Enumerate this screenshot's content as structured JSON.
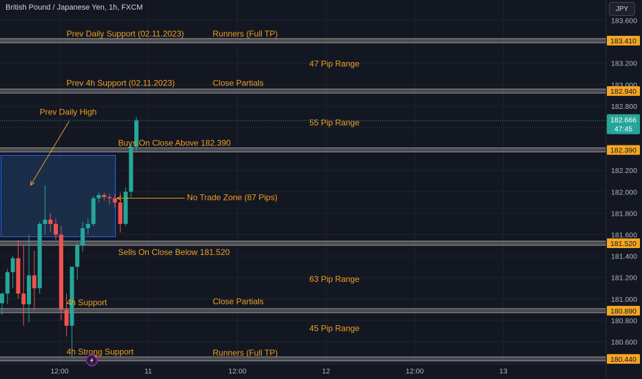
{
  "header": {
    "title": "British Pound / Japanese Yen, 1h, FXCM",
    "currency_button": "JPY"
  },
  "colors": {
    "background": "#131722",
    "up": "#26a69a",
    "down": "#ef5350",
    "annotation": "#f0a020",
    "zone_fill": "#1c3556",
    "zone_border": "#2962ff",
    "level_band": "#777777",
    "price_tag": "#f5a623",
    "current_price_tag": "#26a69a",
    "axis_text": "#b2b5be",
    "grid": "#1f232e"
  },
  "chart_data": {
    "type": "candlestick",
    "title": "British Pound / Japanese Yen, 1h, FXCM",
    "ylim": [
      180.38,
      183.7
    ],
    "y_ticks": [
      "183.600",
      "183.400",
      "183.200",
      "183.000",
      "182.800",
      "182.600",
      "182.400",
      "182.200",
      "182.000",
      "181.800",
      "181.600",
      "181.400",
      "181.200",
      "181.000",
      "180.800",
      "180.600"
    ],
    "x_ticks": [
      {
        "label": "12:00",
        "bar": 10.7
      },
      {
        "label": "11",
        "bar": 27.2
      },
      {
        "label": "12:00",
        "bar": 43.8
      },
      {
        "label": "12",
        "bar": 60.3
      },
      {
        "label": "12:00",
        "bar": 76.8
      },
      {
        "label": "13",
        "bar": 93.3
      }
    ],
    "candles": [
      {
        "o": 180.96,
        "h": 181.06,
        "l": 180.85,
        "c": 181.05
      },
      {
        "o": 181.05,
        "h": 181.28,
        "l": 180.95,
        "c": 181.25
      },
      {
        "o": 181.25,
        "h": 181.4,
        "l": 181.1,
        "c": 181.38
      },
      {
        "o": 181.38,
        "h": 181.55,
        "l": 181.0,
        "c": 181.05
      },
      {
        "o": 181.05,
        "h": 181.5,
        "l": 180.75,
        "c": 180.95
      },
      {
        "o": 180.95,
        "h": 181.6,
        "l": 180.78,
        "c": 181.22
      },
      {
        "o": 181.22,
        "h": 181.45,
        "l": 180.9,
        "c": 181.1
      },
      {
        "o": 181.1,
        "h": 181.72,
        "l": 181.05,
        "c": 181.7
      },
      {
        "o": 181.7,
        "h": 182.06,
        "l": 181.6,
        "c": 181.74
      },
      {
        "o": 181.74,
        "h": 181.8,
        "l": 181.62,
        "c": 181.7
      },
      {
        "o": 181.7,
        "h": 181.75,
        "l": 181.55,
        "c": 181.6
      },
      {
        "o": 181.6,
        "h": 181.68,
        "l": 180.8,
        "c": 180.9
      },
      {
        "o": 180.9,
        "h": 181.05,
        "l": 180.65,
        "c": 180.75
      },
      {
        "o": 180.75,
        "h": 181.3,
        "l": 180.45,
        "c": 181.3
      },
      {
        "o": 181.3,
        "h": 181.52,
        "l": 181.18,
        "c": 181.5
      },
      {
        "o": 181.5,
        "h": 181.72,
        "l": 181.44,
        "c": 181.66
      },
      {
        "o": 181.66,
        "h": 181.75,
        "l": 181.6,
        "c": 181.7
      },
      {
        "o": 181.7,
        "h": 181.96,
        "l": 181.68,
        "c": 181.94
      },
      {
        "o": 181.94,
        "h": 181.99,
        "l": 181.9,
        "c": 181.97
      },
      {
        "o": 181.97,
        "h": 181.99,
        "l": 181.92,
        "c": 181.95
      },
      {
        "o": 181.95,
        "h": 181.98,
        "l": 181.88,
        "c": 181.94
      },
      {
        "o": 181.94,
        "h": 181.98,
        "l": 181.85,
        "c": 181.9
      },
      {
        "o": 181.9,
        "h": 181.99,
        "l": 181.62,
        "c": 181.7
      },
      {
        "o": 181.7,
        "h": 182.04,
        "l": 181.68,
        "c": 182.0
      },
      {
        "o": 182.0,
        "h": 182.44,
        "l": 181.95,
        "c": 182.42
      },
      {
        "o": 182.42,
        "h": 182.7,
        "l": 182.38,
        "c": 182.666
      }
    ],
    "levels": [
      {
        "price": 183.41,
        "label": "183.410"
      },
      {
        "price": 182.94,
        "label": "182.940"
      },
      {
        "price": 182.39,
        "label": "182.390"
      },
      {
        "price": 181.52,
        "label": "181.520"
      },
      {
        "price": 180.89,
        "label": "180.890"
      },
      {
        "price": 180.44,
        "label": "180.440"
      }
    ],
    "current_price": {
      "price": 182.666,
      "label": "182.666",
      "countdown": "47:45"
    },
    "zone": {
      "top": 182.34,
      "bottom": 181.58,
      "bar_start": -0.2,
      "bar_end": 21.1
    },
    "annotations": [
      {
        "text": "Prev Daily Support (02.11.2023)",
        "price": 183.45,
        "bar": 12.0
      },
      {
        "text": "Runners (Full TP)",
        "price": 183.45,
        "bar": 39.2
      },
      {
        "text": "47 Pip Range",
        "price": 183.17,
        "bar": 57.2
      },
      {
        "text": "Prev 4h Support (02.11.2023)",
        "price": 182.99,
        "bar": 12.0
      },
      {
        "text": "Close Partials",
        "price": 182.99,
        "bar": 39.2
      },
      {
        "text": "Prev Daily High",
        "price": 182.72,
        "bar": 7.0
      },
      {
        "text": "55 Pip Range",
        "price": 182.62,
        "bar": 57.2
      },
      {
        "text": "Buys On Close Above 182.390",
        "price": 182.43,
        "bar": 21.6
      },
      {
        "text": "No Trade Zone (87 Pips)",
        "price": 181.92,
        "bar": 34.4
      },
      {
        "text": "Sells On Close Below 181.520",
        "price": 181.41,
        "bar": 21.6
      },
      {
        "text": "63 Pip Range",
        "price": 181.16,
        "bar": 57.2
      },
      {
        "text": "4h Support",
        "price": 180.94,
        "bar": 12.0
      },
      {
        "text": "Close Partials",
        "price": 180.95,
        "bar": 39.2
      },
      {
        "text": "45 Pip Range",
        "price": 180.7,
        "bar": 57.2
      },
      {
        "text": "4h Strong Support",
        "price": 180.48,
        "bar": 12.0
      },
      {
        "text": "Runners (Full TP)",
        "price": 180.47,
        "bar": 39.2
      }
    ],
    "arrows": [
      {
        "from_bar": 12.5,
        "from_price": 182.66,
        "to_bar": 5.3,
        "to_price": 182.06
      },
      {
        "from_bar": 34.0,
        "from_price": 181.94,
        "to_bar": 21.4,
        "to_price": 181.94
      }
    ],
    "event_marker": {
      "bar": 16.7,
      "price": 180.44,
      "icon": "lightning-icon"
    }
  }
}
